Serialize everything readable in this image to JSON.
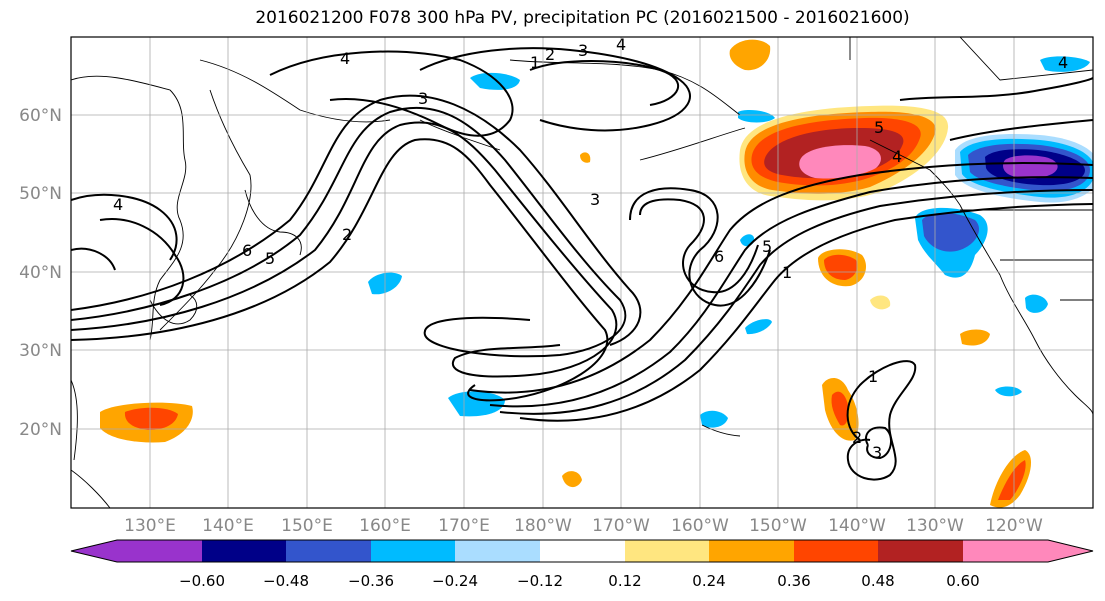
{
  "title": "2016021200 F078 300 hPa PV, precipitation PC (2016021500 - 2016021600)",
  "axes": {
    "x_ticks": [
      "130°E",
      "140°E",
      "150°E",
      "160°E",
      "170°E",
      "180°W",
      "170°W",
      "160°W",
      "150°W",
      "140°W",
      "130°W",
      "120°W"
    ],
    "y_ticks": [
      "60°N",
      "50°N",
      "40°N",
      "30°N",
      "20°N"
    ],
    "tick_color": "#888888"
  },
  "colorbar": {
    "labels": [
      "−0.60",
      "−0.48",
      "−0.36",
      "−0.24",
      "−0.12",
      "0.12",
      "0.24",
      "0.36",
      "0.48",
      "0.60"
    ],
    "colors": [
      "#9933cc",
      "#000088",
      "#3355cc",
      "#00bbff",
      "#aaddff",
      "#ffffff",
      "#ffe680",
      "#ffa500",
      "#ff4500",
      "#b22222",
      "#ff88bb"
    ]
  },
  "contour_labels": [
    "4",
    "2",
    "3",
    "4",
    "1",
    "3",
    "4",
    "2",
    "6",
    "5",
    "3",
    "6",
    "5",
    "1",
    "4",
    "5",
    "1",
    "2",
    "3",
    "4"
  ]
}
